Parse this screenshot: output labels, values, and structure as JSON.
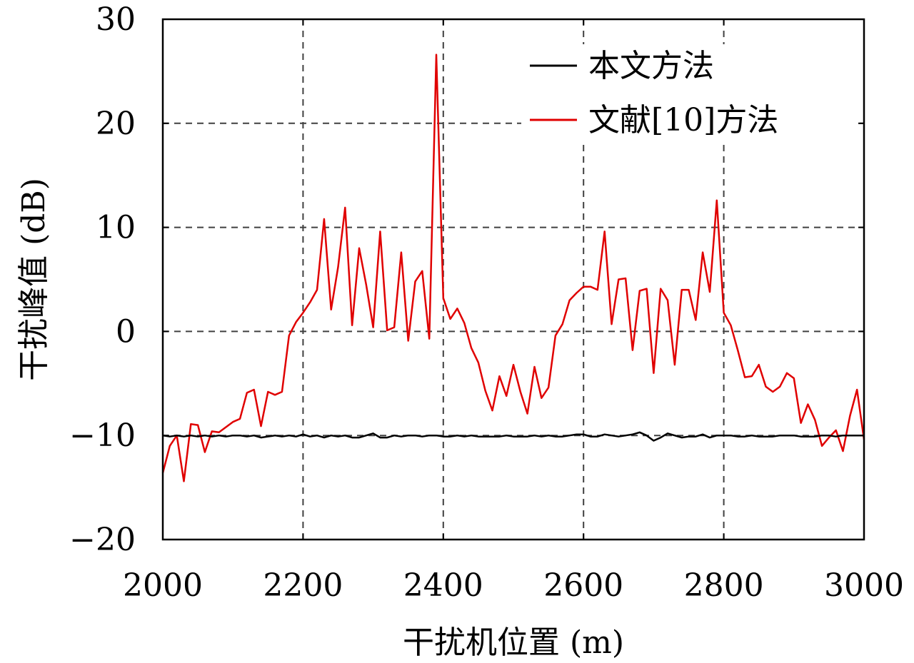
{
  "chart_data": {
    "type": "line",
    "xlabel": "干扰机位置 (m)",
    "ylabel": "干扰峰值 (dB)",
    "xlim": [
      2000,
      3000
    ],
    "ylim": [
      -20,
      30
    ],
    "xticks": [
      2000,
      2200,
      2400,
      2600,
      2800,
      3000
    ],
    "yticks": [
      -20,
      -10,
      0,
      10,
      20,
      30
    ],
    "xtick_labels": [
      "2000",
      "2200",
      "2400",
      "2600",
      "2800",
      "3000"
    ],
    "ytick_labels": [
      "−20",
      "−10",
      "0",
      "10",
      "20",
      "30"
    ],
    "grid": true,
    "legend_position": "top-right",
    "series": [
      {
        "name": "本文方法",
        "color": "#000000",
        "x": [
          2000,
          2010,
          2020,
          2030,
          2040,
          2050,
          2060,
          2070,
          2080,
          2090,
          2100,
          2110,
          2120,
          2130,
          2140,
          2150,
          2160,
          2170,
          2180,
          2190,
          2200,
          2210,
          2220,
          2230,
          2240,
          2250,
          2260,
          2270,
          2280,
          2290,
          2300,
          2310,
          2320,
          2330,
          2340,
          2350,
          2360,
          2370,
          2380,
          2390,
          2400,
          2410,
          2420,
          2430,
          2440,
          2450,
          2460,
          2470,
          2480,
          2490,
          2500,
          2510,
          2520,
          2530,
          2540,
          2550,
          2560,
          2570,
          2580,
          2590,
          2600,
          2610,
          2620,
          2630,
          2640,
          2650,
          2660,
          2670,
          2680,
          2690,
          2700,
          2710,
          2720,
          2730,
          2740,
          2750,
          2760,
          2770,
          2780,
          2790,
          2800,
          2810,
          2820,
          2830,
          2840,
          2850,
          2860,
          2870,
          2880,
          2890,
          2900,
          2910,
          2920,
          2930,
          2940,
          2950,
          2960,
          2970,
          2980,
          2990,
          3000
        ],
        "y": [
          -10,
          -10.1,
          -10,
          -10.1,
          -10,
          -10.1,
          -10,
          -10.1,
          -10,
          -10.1,
          -10,
          -10,
          -10.1,
          -10,
          -10.2,
          -10.1,
          -10,
          -10.1,
          -10,
          -10.1,
          -9.9,
          -10.1,
          -10,
          -10.2,
          -10,
          -10.1,
          -10,
          -10.2,
          -10.2,
          -10,
          -9.8,
          -10.2,
          -10.2,
          -10,
          -10.1,
          -10,
          -10,
          -10.1,
          -10,
          -10,
          -10.1,
          -10.1,
          -10,
          -10.1,
          -10,
          -10.1,
          -10.1,
          -10.1,
          -10.1,
          -10,
          -10.1,
          -10.1,
          -10.1,
          -10,
          -10.1,
          -10,
          -10.1,
          -10.1,
          -10,
          -9.9,
          -9.9,
          -10.1,
          -10.1,
          -9.9,
          -10,
          -10.1,
          -10,
          -9.9,
          -9.7,
          -10,
          -10.5,
          -10.2,
          -9.8,
          -10,
          -10.2,
          -10.1,
          -10.1,
          -9.9,
          -10.2,
          -10,
          -10,
          -10,
          -10.1,
          -10.1,
          -10,
          -10.1,
          -10.1,
          -10.1,
          -10,
          -10,
          -10,
          -10.1,
          -10.1,
          -10.1,
          -10,
          -10,
          -10.1,
          -10,
          -10,
          -10,
          -10
        ]
      },
      {
        "name": "文献[10]方法",
        "color": "#e00000",
        "x": [
          2000,
          2010,
          2020,
          2030,
          2040,
          2050,
          2060,
          2070,
          2080,
          2090,
          2100,
          2110,
          2120,
          2130,
          2140,
          2150,
          2160,
          2170,
          2180,
          2190,
          2200,
          2210,
          2220,
          2230,
          2240,
          2250,
          2260,
          2270,
          2280,
          2290,
          2300,
          2310,
          2320,
          2330,
          2340,
          2350,
          2360,
          2370,
          2380,
          2390,
          2400,
          2410,
          2420,
          2430,
          2440,
          2450,
          2460,
          2470,
          2480,
          2490,
          2500,
          2510,
          2520,
          2530,
          2540,
          2550,
          2560,
          2570,
          2580,
          2590,
          2600,
          2610,
          2620,
          2630,
          2640,
          2650,
          2660,
          2670,
          2680,
          2690,
          2700,
          2710,
          2720,
          2730,
          2740,
          2750,
          2760,
          2770,
          2780,
          2790,
          2800,
          2810,
          2820,
          2830,
          2840,
          2850,
          2860,
          2870,
          2880,
          2890,
          2900,
          2910,
          2920,
          2930,
          2940,
          2950,
          2960,
          2970,
          2980,
          2990,
          3000
        ],
        "y": [
          -13.6,
          -11,
          -10,
          -14.4,
          -8.9,
          -9,
          -11.6,
          -9.6,
          -9.7,
          -9.2,
          -8.7,
          -8.4,
          -5.9,
          -5.6,
          -9.1,
          -5.8,
          -6.1,
          -5.8,
          -0.4,
          0.9,
          1.8,
          2.8,
          4,
          10.8,
          2.1,
          6.2,
          11.9,
          0.6,
          8,
          4.5,
          0.4,
          9.6,
          0.1,
          0.4,
          7.6,
          -0.9,
          4.8,
          5.8,
          -0.7,
          26.6,
          3.2,
          1.2,
          2.2,
          0.8,
          -1.6,
          -3,
          -5.7,
          -7.6,
          -4.3,
          -6.2,
          -3.2,
          -5.8,
          -7.9,
          -3.4,
          -6.4,
          -5.4,
          -0.4,
          0.7,
          3,
          3.7,
          4.3,
          4.3,
          4,
          9.6,
          0.7,
          5,
          5.1,
          -1.8,
          3.9,
          4.1,
          -4,
          4.1,
          3,
          -3.2,
          4,
          4,
          1.1,
          7.6,
          3.8,
          12.6,
          1.8,
          0.6,
          -1.8,
          -4.4,
          -4.3,
          -3.2,
          -5.3,
          -5.8,
          -5.3,
          -4,
          -4.5,
          -8.8,
          -7,
          -8.5,
          -11,
          -10.2,
          -9.5,
          -11.5,
          -8.1,
          -5.6,
          -10.4
        ]
      }
    ]
  }
}
